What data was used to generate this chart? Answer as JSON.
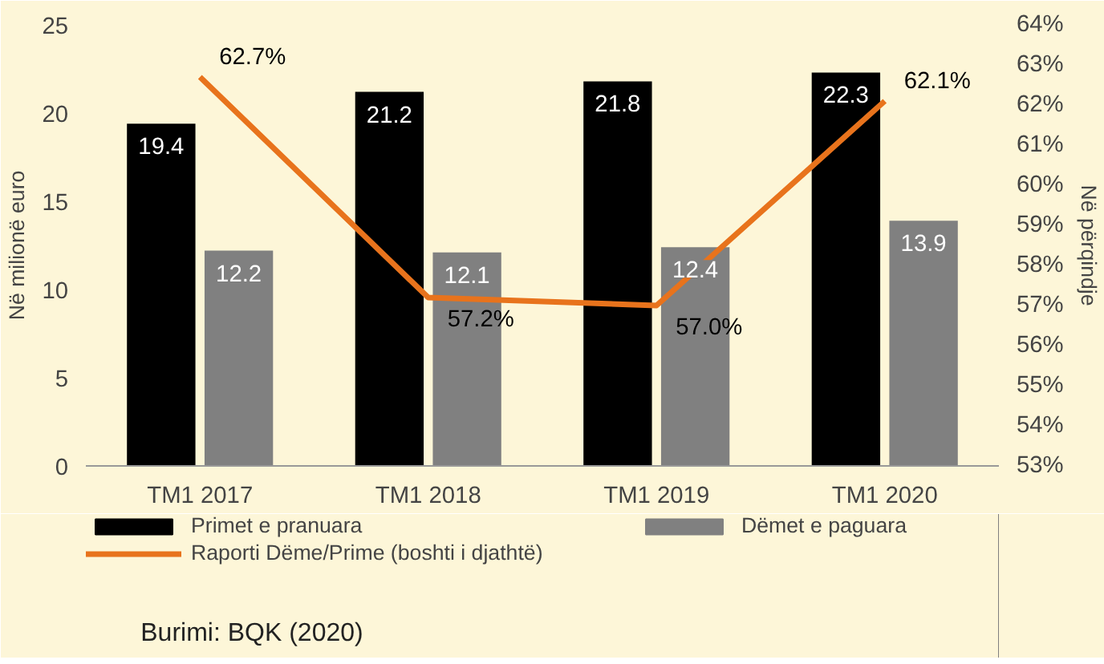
{
  "chart_data": {
    "type": "bar",
    "ylabel": "Në milionë euro",
    "y2label": "Në përqindje",
    "categories": [
      "TM1 2017",
      "TM1 2018",
      "TM1 2019",
      "TM1 2020"
    ],
    "series": [
      {
        "name": "Primet e pranuara",
        "color": "#000000",
        "values": [
          19.4,
          21.2,
          21.8,
          22.3
        ],
        "value_labels": [
          "19.4",
          "21.2",
          "21.8",
          "22.3"
        ]
      },
      {
        "name": "Dëmet e paguara",
        "color": "#808080",
        "values": [
          12.2,
          12.1,
          12.4,
          13.9
        ],
        "value_labels": [
          "12.2",
          "12.1",
          "12.4",
          "13.9"
        ]
      },
      {
        "name": "Raporti Dëme/Prime (boshti i djathtë)",
        "type": "line",
        "axis": "y2",
        "color": "#e8731c",
        "values": [
          62.7,
          57.2,
          57.0,
          62.1
        ],
        "value_labels": [
          "62.7%",
          "57.2%",
          "57.0%",
          "62.1%"
        ]
      }
    ],
    "ylim": [
      0,
      25
    ],
    "yticks": [
      0,
      5,
      10,
      15,
      20,
      25
    ],
    "y2lim": [
      53,
      64
    ],
    "y2ticks": [
      {
        "value": 53,
        "label": "53%"
      },
      {
        "value": 54,
        "label": "54%"
      },
      {
        "value": 55,
        "label": "55%"
      },
      {
        "value": 56,
        "label": "56%"
      },
      {
        "value": 57,
        "label": "57%"
      },
      {
        "value": 58,
        "label": "58%"
      },
      {
        "value": 59,
        "label": "59%"
      },
      {
        "value": 60,
        "label": "60%"
      },
      {
        "value": 61,
        "label": "61%"
      },
      {
        "value": 62,
        "label": "62%"
      },
      {
        "value": 63,
        "label": "63%"
      },
      {
        "value": 64,
        "label": "64%"
      }
    ],
    "grid": false,
    "legend": "bottom",
    "annotations": [
      "Burimi: BQK (2020)"
    ]
  }
}
